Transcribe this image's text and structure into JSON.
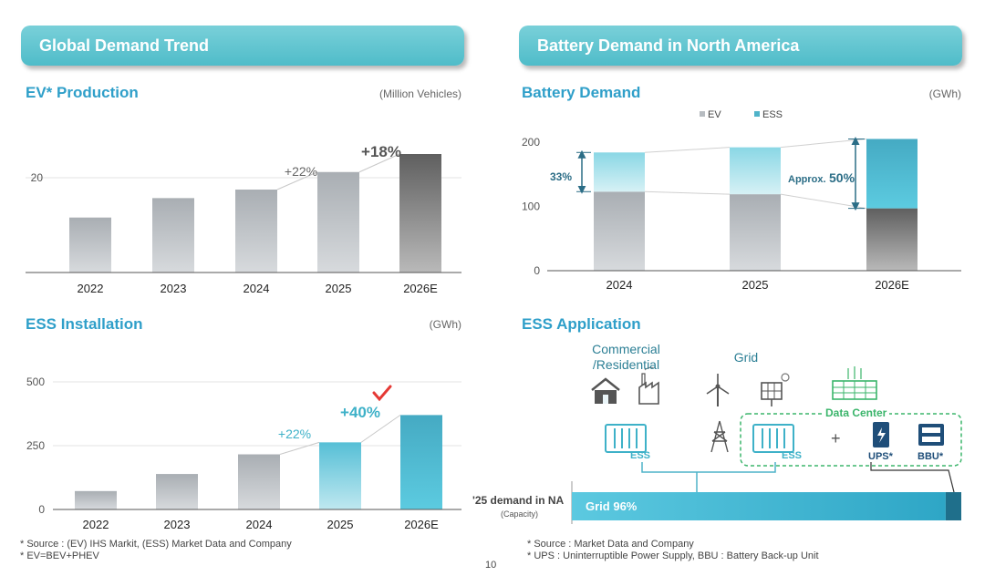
{
  "left_banner": "Global Demand Trend",
  "right_banner": "Battery Demand in North America",
  "ev": {
    "title": "EV* Production",
    "unit": "(Million Vehicles)",
    "annot_22": "+22%",
    "annot_18": "+18%"
  },
  "battery": {
    "title": "Battery Demand",
    "unit": "(GWh)",
    "legend_ev": "EV",
    "legend_ess": "ESS",
    "annot_33": "33%",
    "annot_approx": "Approx.",
    "annot_50": "50%"
  },
  "ess_install": {
    "title": "ESS Installation",
    "unit": "(GWh)",
    "annot_22": "+22%",
    "annot_40": "+40%"
  },
  "ess_app": {
    "title": "ESS Application",
    "commercial_label": "Commercial\n/Residential",
    "grid_label": "Grid",
    "data_center_label": "Data Center",
    "ess_label_1": "ESS",
    "ess_label_2": "ESS",
    "plus": "+",
    "ups_label": "UPS*",
    "bbu_label": "BBU*",
    "demand_label": "'25 demand in NA",
    "capacity_label": "(Capacity)",
    "grid_share_label": "Grid 96%",
    "grid_share": 0.96
  },
  "notes": {
    "left_1": "* Source : (EV) IHS Markit, (ESS) Market Data and Company",
    "left_2": "* EV=BEV+PHEV",
    "right_1": "* Source : Market Data and Company",
    "right_2": "* UPS : Uninterruptible Power Supply, BBU : Battery Back-up Unit",
    "page_number": "10"
  },
  "colors": {
    "banner": "#5cc2cd",
    "title_blue": "#2f9fc9",
    "gray_bar": "#b7bcc1",
    "dark_bar": "#6a6a6a",
    "teal_bar": "#4fb3c9",
    "light_teal": "#a5e0ea",
    "red_check": "#e53935",
    "dc_green": "#3bb56b"
  },
  "chart_data": [
    {
      "type": "bar",
      "title": "EV* Production",
      "unit": "(Million Vehicles)",
      "categories": [
        "2022",
        "2023",
        "2024",
        "2025",
        "2026E"
      ],
      "values": [
        11.6,
        15.7,
        17.5,
        21.2,
        25.0
      ],
      "yticks": [
        20
      ],
      "ylim": [
        0,
        30
      ],
      "annotations": [
        "+22%",
        "+18%"
      ]
    },
    {
      "type": "bar",
      "stacked": true,
      "title": "Battery Demand",
      "unit": "(GWh)",
      "categories": [
        "2024",
        "2025",
        "2026E"
      ],
      "series": [
        {
          "name": "EV",
          "values": [
            123,
            119,
            97
          ]
        },
        {
          "name": "ESS",
          "values": [
            61,
            73,
            108
          ]
        }
      ],
      "yticks": [
        0,
        100,
        200
      ],
      "ylim": [
        0,
        210
      ],
      "legend": "top"
    },
    {
      "type": "bar",
      "title": "ESS Installation",
      "unit": "(GWh)",
      "categories": [
        "2022",
        "2023",
        "2024",
        "2025",
        "2026E"
      ],
      "values": [
        72,
        139,
        216,
        263,
        370
      ],
      "yticks": [
        0,
        250,
        500
      ],
      "ylim": [
        0,
        500
      ],
      "annotations": [
        "+22%",
        "+40%"
      ]
    }
  ]
}
